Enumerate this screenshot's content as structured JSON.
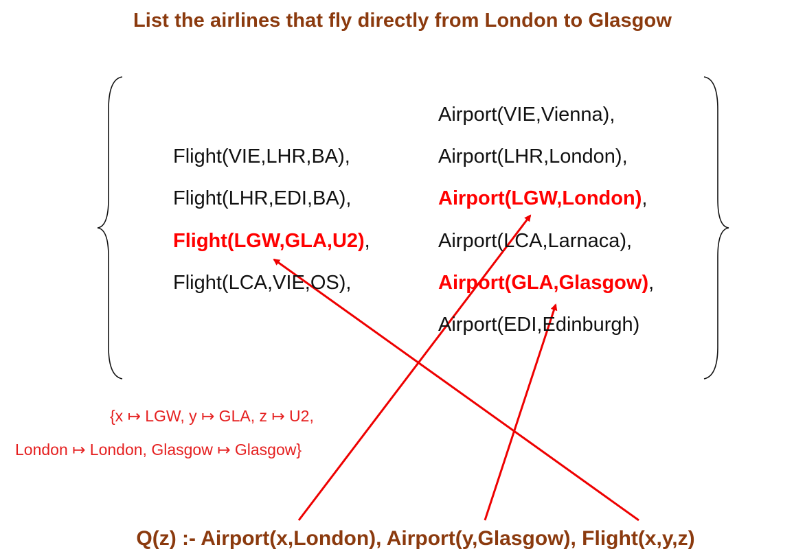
{
  "title": "List the airlines that fly directly from London to Glasgow",
  "flights": [
    {
      "text": "Flight(VIE,LHR,BA)",
      "suffix": ",",
      "highlight": false
    },
    {
      "text": "Flight(LHR,EDI,BA)",
      "suffix": ",",
      "highlight": false
    },
    {
      "text": "Flight(LGW,GLA,U2)",
      "suffix": ",",
      "highlight": true
    },
    {
      "text": "Flight(LCA,VIE,OS)",
      "suffix": ",",
      "highlight": false
    }
  ],
  "airports": [
    {
      "text": "Airport(VIE,Vienna)",
      "suffix": ",",
      "highlight": false
    },
    {
      "text": "Airport(LHR,London)",
      "suffix": ",",
      "highlight": false
    },
    {
      "text": "Airport(LGW,London)",
      "suffix": ",",
      "highlight": true
    },
    {
      "text": "Airport(LCA,Larnaca)",
      "suffix": ",",
      "highlight": false
    },
    {
      "text": "Airport(GLA,Glasgow)",
      "suffix": ",",
      "highlight": true
    },
    {
      "text": "Airport(EDI,Edinburgh)",
      "suffix": "",
      "highlight": false
    }
  ],
  "mapping": {
    "line1": "{x ↦ LGW, y ↦ GLA, z ↦ U2,",
    "line2": "London ↦ London, Glasgow ↦ Glasgow}"
  },
  "query": "Q(z)  :-  Airport(x,London), Airport(y,Glasgow), Flight(x,y,z)",
  "colors": {
    "title": "#8b3a0e",
    "highlight": "#ff0000",
    "arrow": "#ee0000",
    "mapping": "#e52020"
  }
}
